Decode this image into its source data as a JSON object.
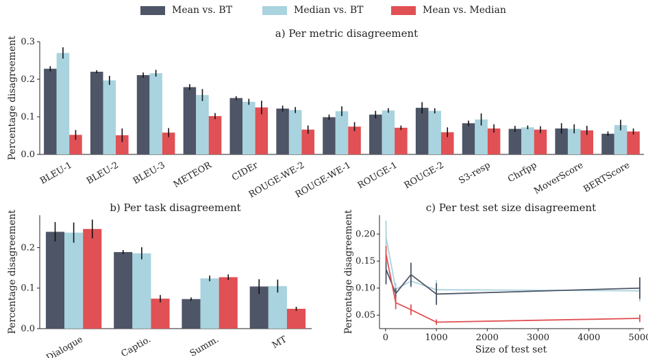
{
  "legend": {
    "items": [
      {
        "label": "Mean vs. BT",
        "color": "#4d5566"
      },
      {
        "label": "Median vs. BT",
        "color": "#a9d3de"
      },
      {
        "label": "Mean vs. Median",
        "color": "#e05054"
      }
    ]
  },
  "chart_data": [
    {
      "type": "bar",
      "title": "a) Per metric disagreement",
      "ylabel": "Percentage disagreement",
      "ylim": [
        0,
        0.3
      ],
      "yticks": [
        0.0,
        0.1,
        0.2,
        0.3
      ],
      "ytick_labels": [
        "0.0",
        "0.1",
        "0.2",
        "0.3"
      ],
      "categories": [
        "BLEU-1",
        "BLEU-2",
        "BLEU-3",
        "METEOR",
        "CIDEr",
        "ROUGE-WE-2",
        "ROUGE-WE-1",
        "ROUGE-1",
        "ROUGE-2",
        "S3-resp",
        "Chrfpp",
        "MoverScore",
        "BERTScore"
      ],
      "series": [
        {
          "name": "Mean vs. BT",
          "color": "#4d5566",
          "values": [
            0.228,
            0.22,
            0.211,
            0.179,
            0.15,
            0.122,
            0.099,
            0.106,
            0.124,
            0.083,
            0.068,
            0.069,
            0.055
          ],
          "errors": [
            0.007,
            0.004,
            0.007,
            0.008,
            0.005,
            0.008,
            0.007,
            0.01,
            0.015,
            0.007,
            0.008,
            0.014,
            0.006
          ]
        },
        {
          "name": "Median vs. BT",
          "color": "#a9d3de",
          "values": [
            0.27,
            0.197,
            0.216,
            0.158,
            0.14,
            0.118,
            0.115,
            0.117,
            0.116,
            0.093,
            0.072,
            0.068,
            0.078
          ],
          "errors": [
            0.015,
            0.012,
            0.009,
            0.016,
            0.008,
            0.008,
            0.013,
            0.006,
            0.007,
            0.016,
            0.005,
            0.012,
            0.014
          ]
        },
        {
          "name": "Mean vs. Median",
          "color": "#e05054",
          "values": [
            0.052,
            0.051,
            0.058,
            0.102,
            0.125,
            0.066,
            0.074,
            0.071,
            0.059,
            0.069,
            0.066,
            0.064,
            0.061
          ],
          "errors": [
            0.013,
            0.018,
            0.012,
            0.008,
            0.018,
            0.011,
            0.012,
            0.006,
            0.013,
            0.011,
            0.009,
            0.012,
            0.008
          ]
        }
      ]
    },
    {
      "type": "bar",
      "title": "b) Per task disagreement",
      "ylabel": "Percentage disagreement",
      "ylim": [
        0,
        0.28
      ],
      "yticks": [
        0.0,
        0.1,
        0.2
      ],
      "ytick_labels": [
        "0.0",
        "0.1",
        "0.2"
      ],
      "categories": [
        "Dialogue",
        "Captio.",
        "Summ.",
        "MT"
      ],
      "series": [
        {
          "name": "Mean vs. BT",
          "color": "#4d5566",
          "values": [
            0.239,
            0.189,
            0.073,
            0.104
          ],
          "errors": [
            0.024,
            0.005,
            0.004,
            0.018
          ]
        },
        {
          "name": "Median vs. BT",
          "color": "#a9d3de",
          "values": [
            0.237,
            0.186,
            0.124,
            0.105
          ],
          "errors": [
            0.025,
            0.015,
            0.007,
            0.016
          ]
        },
        {
          "name": "Mean vs. Median",
          "color": "#e05054",
          "values": [
            0.246,
            0.074,
            0.127,
            0.049
          ],
          "errors": [
            0.023,
            0.009,
            0.007,
            0.005
          ]
        }
      ]
    },
    {
      "type": "line",
      "title": "c) Per test set size disagreement",
      "xlabel": "Size of test set",
      "ylabel": "Percentage disagreement",
      "xlim": [
        -200,
        5000
      ],
      "ylim": [
        0.025,
        0.235
      ],
      "xticks": [
        0,
        1000,
        2000,
        3000,
        4000,
        5000
      ],
      "xtick_labels": [
        "0",
        "1000",
        "2000",
        "3000",
        "4000",
        "5000"
      ],
      "yticks": [
        0.05,
        0.1,
        0.15,
        0.2
      ],
      "ytick_labels": [
        "0.05",
        "0.10",
        "0.15",
        "0.20"
      ],
      "x": [
        10,
        200,
        500,
        1000,
        5000
      ],
      "series": [
        {
          "name": "Mean vs. BT",
          "color": "#4d5566",
          "values": [
            0.135,
            0.09,
            0.125,
            0.089,
            0.1
          ],
          "errors": [
            0.028,
            0.01,
            0.022,
            0.02,
            0.02
          ]
        },
        {
          "name": "Median vs. BT",
          "color": "#a9d3de",
          "values": [
            0.195,
            0.098,
            0.113,
            0.097,
            0.095
          ],
          "errors": [
            0.03,
            0.012,
            0.012,
            0.018,
            0.02
          ]
        },
        {
          "name": "Mean vs. Median",
          "color": "#e05054",
          "values": [
            0.163,
            0.073,
            0.06,
            0.037,
            0.044
          ],
          "errors": [
            0.015,
            0.012,
            0.01,
            0.005,
            0.007
          ]
        }
      ]
    }
  ]
}
